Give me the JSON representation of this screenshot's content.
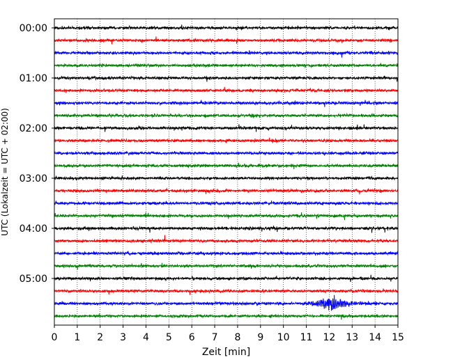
{
  "chart_data": {
    "type": "line",
    "title": "",
    "xlabel": "Zeit  [min]",
    "ylabel": "UTC (Lokalzeit = UTC + 02:00)",
    "xlim": [
      0,
      15
    ],
    "x_ticks": [
      "0",
      "1",
      "2",
      "3",
      "4",
      "5",
      "6",
      "7",
      "8",
      "9",
      "10",
      "11",
      "12",
      "13",
      "14",
      "15"
    ],
    "y_tick_labels": [
      "00:00",
      "01:00",
      "02:00",
      "03:00",
      "04:00",
      "05:00"
    ],
    "traces_per_hour": 4,
    "trace_count": 24,
    "trace_interval_min": 15,
    "grid": "vertical dotted at each minute",
    "trace_colors": [
      "#000000",
      "#ff0000",
      "#0000ff",
      "#008000"
    ],
    "event": {
      "trace_label": "05:30",
      "start_min": 10.5,
      "peak_min": 12.2,
      "end_min": 14.3
    }
  }
}
